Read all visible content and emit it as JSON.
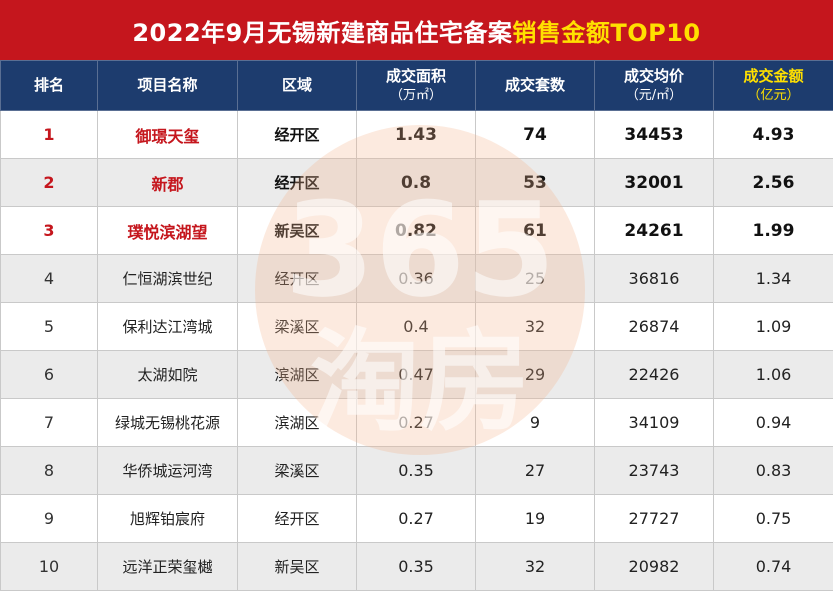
{
  "title": {
    "main": "2022年9月无锡新建商品住宅备案",
    "highlight": "销售金额TOP10"
  },
  "colors": {
    "title_bg": "#c5161d",
    "highlight": "#ffe000",
    "header_bg": "#1d3c6e",
    "top3_text": "#c5161d"
  },
  "headers": {
    "rank": "排名",
    "name": "项目名称",
    "area": "区域",
    "floor_area": "成交面积",
    "floor_area_unit": "（万㎡）",
    "units": "成交套数",
    "price": "成交均价",
    "price_unit": "（元/㎡）",
    "amount": "成交金额",
    "amount_unit": "（亿元）"
  },
  "watermark": {
    "line1": "365",
    "line2": "淘房"
  },
  "rows": [
    {
      "rank": "1",
      "name": "御璟天玺",
      "area": "经开区",
      "floor_area": "1.43",
      "units": "74",
      "price": "34453",
      "amount": "4.93"
    },
    {
      "rank": "2",
      "name": "新郡",
      "area": "经开区",
      "floor_area": "0.8",
      "units": "53",
      "price": "32001",
      "amount": "2.56"
    },
    {
      "rank": "3",
      "name": "璞悦滨湖望",
      "area": "新吴区",
      "floor_area": "0.82",
      "units": "61",
      "price": "24261",
      "amount": "1.99"
    },
    {
      "rank": "4",
      "name": "仁恒湖滨世纪",
      "area": "经开区",
      "floor_area": "0.36",
      "units": "25",
      "price": "36816",
      "amount": "1.34"
    },
    {
      "rank": "5",
      "name": "保利达江湾城",
      "area": "梁溪区",
      "floor_area": "0.4",
      "units": "32",
      "price": "26874",
      "amount": "1.09"
    },
    {
      "rank": "6",
      "name": "太湖如院",
      "area": "滨湖区",
      "floor_area": "0.47",
      "units": "29",
      "price": "22426",
      "amount": "1.06"
    },
    {
      "rank": "7",
      "name": "绿城无锡桃花源",
      "area": "滨湖区",
      "floor_area": "0.27",
      "units": "9",
      "price": "34109",
      "amount": "0.94"
    },
    {
      "rank": "8",
      "name": "华侨城运河湾",
      "area": "梁溪区",
      "floor_area": "0.35",
      "units": "27",
      "price": "23743",
      "amount": "0.83"
    },
    {
      "rank": "9",
      "name": "旭辉铂宸府",
      "area": "经开区",
      "floor_area": "0.27",
      "units": "19",
      "price": "27727",
      "amount": "0.75"
    },
    {
      "rank": "10",
      "name": "远洋正荣玺樾",
      "area": "新吴区",
      "floor_area": "0.35",
      "units": "32",
      "price": "20982",
      "amount": "0.74"
    }
  ]
}
